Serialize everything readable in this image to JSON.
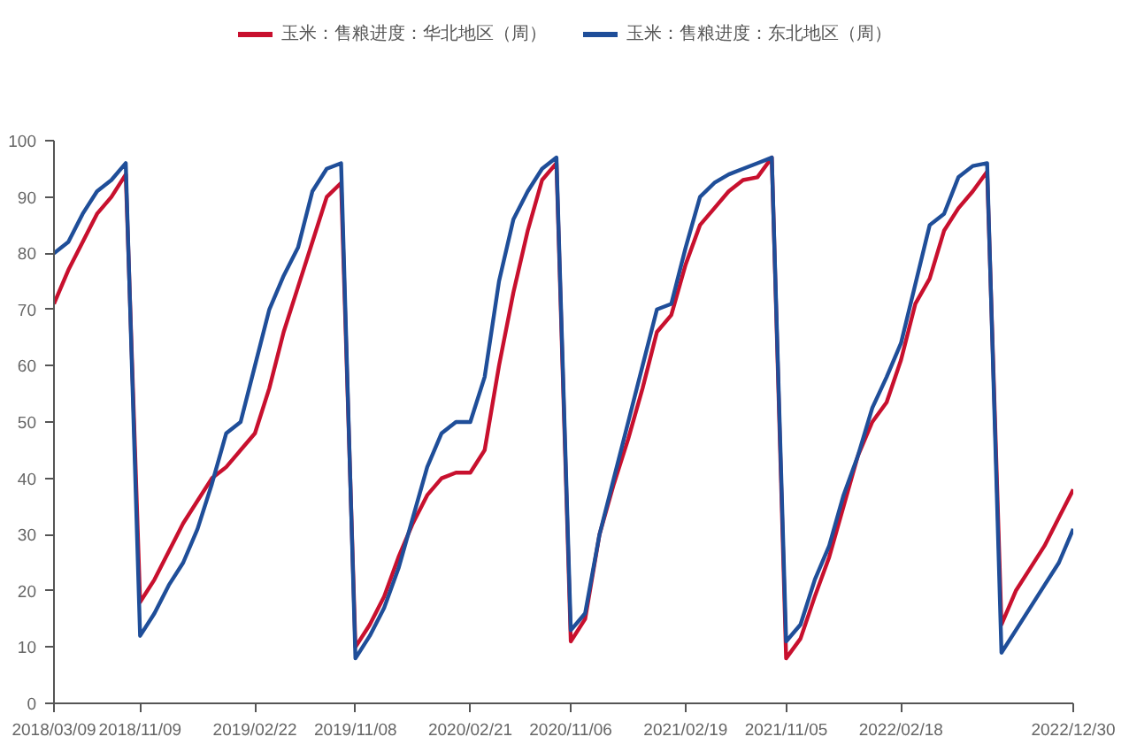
{
  "chart_data": {
    "type": "line",
    "categories": [
      "2018/03/09",
      null,
      null,
      null,
      null,
      null,
      "2018/11/09",
      null,
      null,
      null,
      null,
      null,
      null,
      null,
      "2019/02/22",
      null,
      null,
      null,
      null,
      null,
      null,
      "2019/11/08",
      null,
      null,
      null,
      null,
      null,
      null,
      null,
      "2020/02/21",
      null,
      null,
      null,
      null,
      null,
      null,
      "2020/11/06",
      null,
      null,
      null,
      null,
      null,
      null,
      null,
      "2021/02/19",
      null,
      null,
      null,
      null,
      null,
      null,
      "2021/11/05",
      null,
      null,
      null,
      null,
      null,
      null,
      null,
      "2022/02/18",
      null,
      null,
      null,
      null,
      null,
      null,
      null,
      null,
      null,
      null,
      null,
      "2022/12/30"
    ],
    "series": [
      {
        "name": "玉米：售粮进度：华北地区（周）",
        "color": "#c8102e",
        "values": [
          71,
          77,
          82,
          87,
          90,
          94,
          18,
          22,
          27,
          32,
          36,
          40,
          42,
          45,
          48,
          56,
          66,
          74,
          82,
          90,
          92.5,
          10,
          14,
          19,
          26,
          32,
          37,
          40,
          41,
          41,
          45,
          60,
          73,
          84,
          93,
          96,
          11,
          15,
          30,
          39,
          47,
          56,
          66,
          69,
          78,
          85,
          88,
          91,
          93,
          93.5,
          97,
          8,
          11.5,
          19,
          26,
          35,
          44,
          50,
          53.5,
          61,
          71,
          75.5,
          84,
          88,
          91,
          94.5,
          14,
          20,
          24,
          28,
          33,
          38
        ]
      },
      {
        "name": "玉米：售粮进度：东北地区（周）",
        "color": "#1f4e99",
        "values": [
          80,
          82,
          87,
          91,
          93,
          96,
          12,
          16,
          21,
          25,
          31,
          39,
          48,
          50,
          60,
          70,
          76,
          81,
          91,
          95,
          96,
          8,
          12,
          17,
          24,
          33,
          42,
          48,
          50,
          50,
          58,
          75,
          86,
          91,
          95,
          97,
          13,
          16,
          30,
          40,
          50,
          60,
          70,
          71,
          81,
          90,
          92.5,
          94,
          95,
          96,
          97,
          11,
          14,
          22,
          28,
          37,
          44,
          52.5,
          58,
          64,
          74.5,
          85,
          87,
          93.5,
          95.5,
          96,
          9,
          13,
          17,
          21,
          25,
          31
        ]
      }
    ],
    "ylim": [
      0,
      100
    ],
    "yticks": [
      0,
      10,
      20,
      30,
      40,
      50,
      60,
      70,
      80,
      90,
      100
    ],
    "grid": false,
    "legend": "top",
    "marker": "none",
    "line_style": "solid"
  }
}
